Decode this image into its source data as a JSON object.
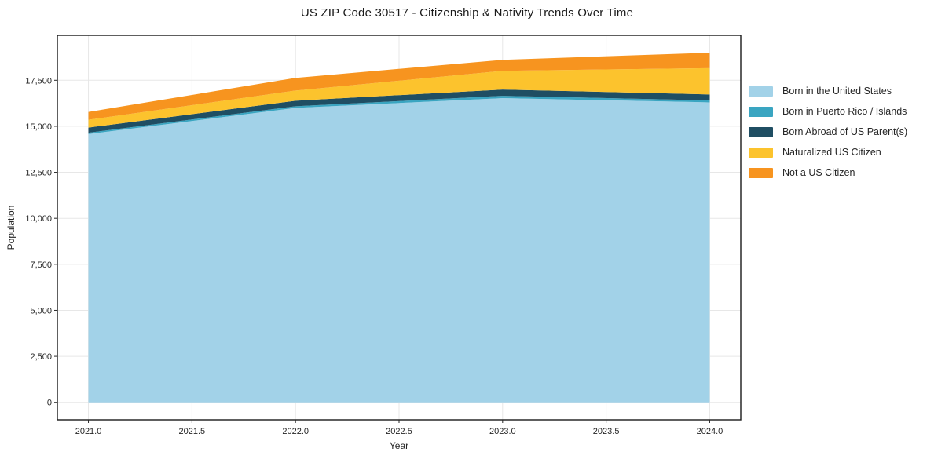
{
  "title": "US ZIP Code 30517 - Citizenship & Nativity Trends Over Time",
  "chart_data": {
    "type": "area",
    "stacked": true,
    "title": "US ZIP Code 30517 - Citizenship & Nativity Trends Over Time",
    "xlabel": "Year",
    "ylabel": "Population",
    "x": [
      2021,
      2022,
      2023,
      2024
    ],
    "series": [
      {
        "name": "Born in the United States",
        "color": "#a2d2e8",
        "values": [
          14575,
          16000,
          16530,
          16300
        ]
      },
      {
        "name": "Born in Puerto Rico / Islands",
        "color": "#3aa5c1",
        "values": [
          75,
          90,
          125,
          110
        ]
      },
      {
        "name": "Born Abroad of US Parent(s)",
        "color": "#1f4e63",
        "values": [
          280,
          300,
          340,
          320
        ]
      },
      {
        "name": "Naturalized US Citizen",
        "color": "#fcc32d",
        "values": [
          425,
          550,
          1020,
          1430
        ]
      },
      {
        "name": "Not a US Citizen",
        "color": "#f7941f",
        "values": [
          425,
          690,
          595,
          840
        ]
      }
    ],
    "totals": [
      15780,
      17630,
      18610,
      19000
    ],
    "xticks": [
      2021.0,
      2021.5,
      2022.0,
      2022.5,
      2023.0,
      2023.5,
      2024.0
    ],
    "xtick_labels": [
      "2021.0",
      "2021.5",
      "2022.0",
      "2022.5",
      "2023.0",
      "2023.5",
      "2024.0"
    ],
    "yticks": [
      0,
      2500,
      5000,
      7500,
      10000,
      12500,
      15000,
      17500
    ],
    "ytick_labels": [
      "0",
      "2,500",
      "5,000",
      "7,500",
      "10,000",
      "12,500",
      "15,000",
      "17,500"
    ],
    "xlim": [
      2020.85,
      2024.15
    ],
    "ylim": [
      -950,
      19943
    ],
    "grid": true,
    "grid_color": "#e7e7e7",
    "spine_color": "#1a1a1a",
    "tick_color": "#262626",
    "legend_position": "right",
    "legend_frame": false
  }
}
